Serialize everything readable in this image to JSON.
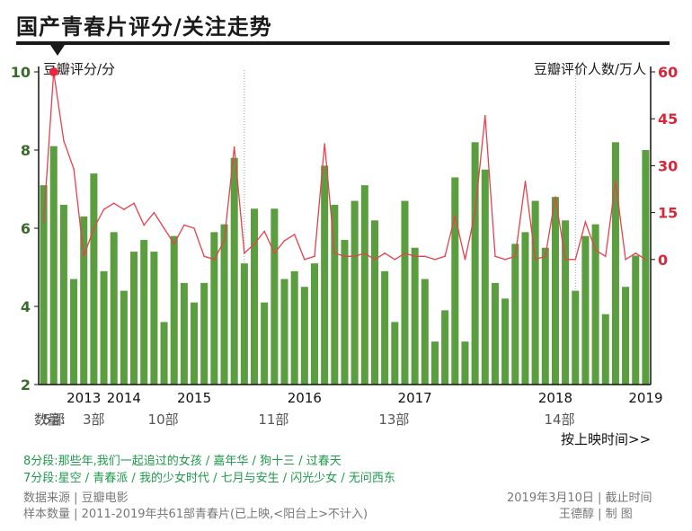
{
  "title": "国产青春片评分/关注走势",
  "left_axis_title": "豆瓣评分/分",
  "right_axis_title": "豆瓣评价人数/万人",
  "counts_label": "数量:",
  "counts": [
    {
      "label": "5部",
      "idx": 2
    },
    {
      "label": "3部",
      "idx": 6
    },
    {
      "label": "10部",
      "idx": 12.5
    },
    {
      "label": "11部",
      "idx": 23.5
    },
    {
      "label": "13部",
      "idx": 35.5
    },
    {
      "label": "14部",
      "idx": 52
    }
  ],
  "sort_note": "按上映时间>>",
  "legend": {
    "line8": "8分段:那些年,我们一起追过的女孩 / 嘉年华 / 狗十三 / 过春天",
    "line7": "7分段:星空 / 青春派 / 我的少女时代 / 七月与安生 / 闪光少女 / 无问西东"
  },
  "footer": {
    "source": "数据来源 | 豆瓣电影",
    "sample": "样本数量 | 2011-2019年共61部青春片(已上映,<阳台上>不计入)",
    "date": "2019年3月10日 | 截止时间",
    "author": "王德醇 | 制      图"
  },
  "colors": {
    "bar": "#5b9e40",
    "line": "#e8404e",
    "left_axis": "#3a6b2a",
    "right_axis": "#d6283a",
    "highlight_dot": "#e8283a"
  },
  "chart_data": {
    "type": "bar+line",
    "title": "国产青春片评分/关注走势",
    "xlabel": "按上映时间>>",
    "ylabel": "豆瓣评分/分",
    "ylabel_right": "豆瓣评价人数/万人",
    "ylim": [
      2,
      10
    ],
    "ylim_right": [
      -40,
      60
    ],
    "yticks": [
      2,
      4,
      6,
      8,
      10
    ],
    "yticks_right": [
      0,
      15,
      30,
      45,
      60
    ],
    "year_labels": [
      {
        "label": "2013",
        "idx": 4.5
      },
      {
        "label": "2014",
        "idx": 8.5
      },
      {
        "label": "2015",
        "idx": 15.5
      },
      {
        "label": "2016",
        "idx": 26.5
      },
      {
        "label": "2017",
        "idx": 37.5
      },
      {
        "label": "2018",
        "idx": 51.5
      },
      {
        "label": "2019",
        "idx": 60.5
      }
    ],
    "year_separators": [
      20.5,
      53.5
    ],
    "series": [
      {
        "name": "豆瓣评分",
        "type": "bar",
        "values": [
          7.1,
          8.1,
          6.6,
          4.7,
          6.3,
          7.4,
          4.9,
          5.9,
          4.4,
          5.4,
          5.7,
          5.4,
          3.6,
          5.8,
          4.6,
          4.1,
          4.6,
          5.9,
          6.1,
          7.8,
          5.1,
          6.5,
          4.1,
          6.5,
          4.7,
          4.9,
          4.5,
          5.1,
          7.6,
          6.6,
          5.7,
          6.7,
          7.1,
          6.2,
          4.9,
          3.6,
          6.7,
          5.5,
          4.7,
          3.1,
          3.9,
          7.3,
          3.1,
          8.2,
          7.5,
          4.6,
          4.2,
          5.6,
          5.9,
          6.7,
          5.5,
          6.8,
          6.2,
          4.4,
          5.8,
          6.1,
          3.8,
          8.2,
          4.5,
          5.3,
          8.0
        ]
      },
      {
        "name": "豆瓣评价人数(万人)",
        "type": "line",
        "values": [
          12,
          60,
          38,
          29,
          1,
          10,
          16,
          18,
          16,
          18,
          11,
          15,
          10,
          5,
          11,
          10,
          1,
          0,
          6,
          36,
          2,
          5,
          9,
          2,
          6,
          8,
          0,
          1,
          37,
          2,
          1,
          1,
          2,
          0,
          2,
          0,
          2,
          1,
          1,
          0,
          1,
          14,
          0,
          15,
          46,
          1,
          0,
          1,
          25,
          0,
          1,
          20,
          0,
          0,
          12,
          3,
          1,
          25,
          0,
          2,
          0
        ]
      }
    ],
    "highlight": {
      "series": 1,
      "idx": 1
    }
  }
}
